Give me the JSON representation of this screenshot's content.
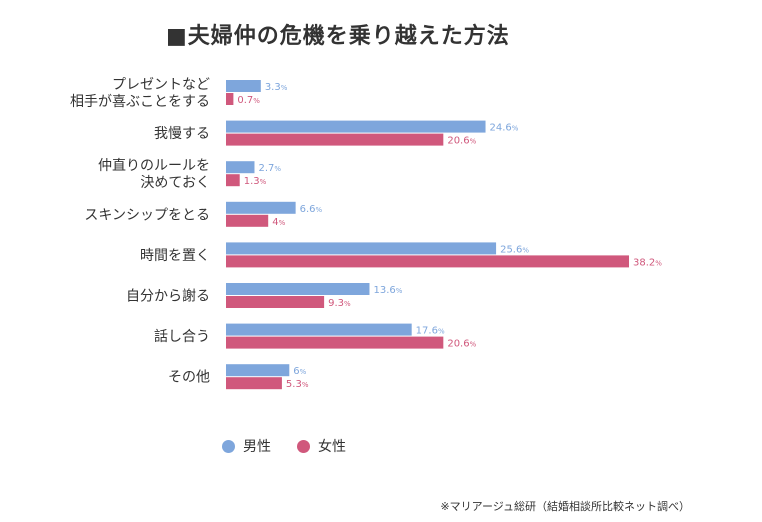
{
  "chart_data": {
    "type": "bar",
    "orientation": "horizontal",
    "title": "■夫婦仲の危機を乗り越えた方法",
    "categories": [
      [
        "プレゼントなど",
        "相手が喜ぶことをする"
      ],
      [
        "我慢する"
      ],
      [
        "仲直りのルールを",
        "決めておく"
      ],
      [
        "スキンシップをとる"
      ],
      [
        "時間を置く"
      ],
      [
        "自分から謝る"
      ],
      [
        "話し合う"
      ],
      [
        "その他"
      ]
    ],
    "series": [
      {
        "name": "男性",
        "color": "#7ea6dc",
        "values": [
          3.3,
          24.6,
          2.7,
          6.6,
          25.6,
          13.6,
          17.6,
          6
        ],
        "labels": [
          "3.3",
          "24.6",
          "2.7",
          "6.6",
          "25.6",
          "13.6",
          "17.6",
          "6"
        ]
      },
      {
        "name": "女性",
        "color": "#d0587c",
        "values": [
          0.7,
          20.6,
          1.3,
          4,
          38.2,
          9.3,
          20.6,
          5.3
        ],
        "labels": [
          "0.7",
          "20.6",
          "1.3",
          "4",
          "38.2",
          "9.3",
          "20.6",
          "5.3"
        ]
      }
    ],
    "unit": "%",
    "legend_position": "bottom-left",
    "grid": false
  },
  "legend": {
    "male": "男性",
    "female": "女性"
  },
  "source": "※マリアージュ総研（結婚相談所比較ネット調べ）"
}
